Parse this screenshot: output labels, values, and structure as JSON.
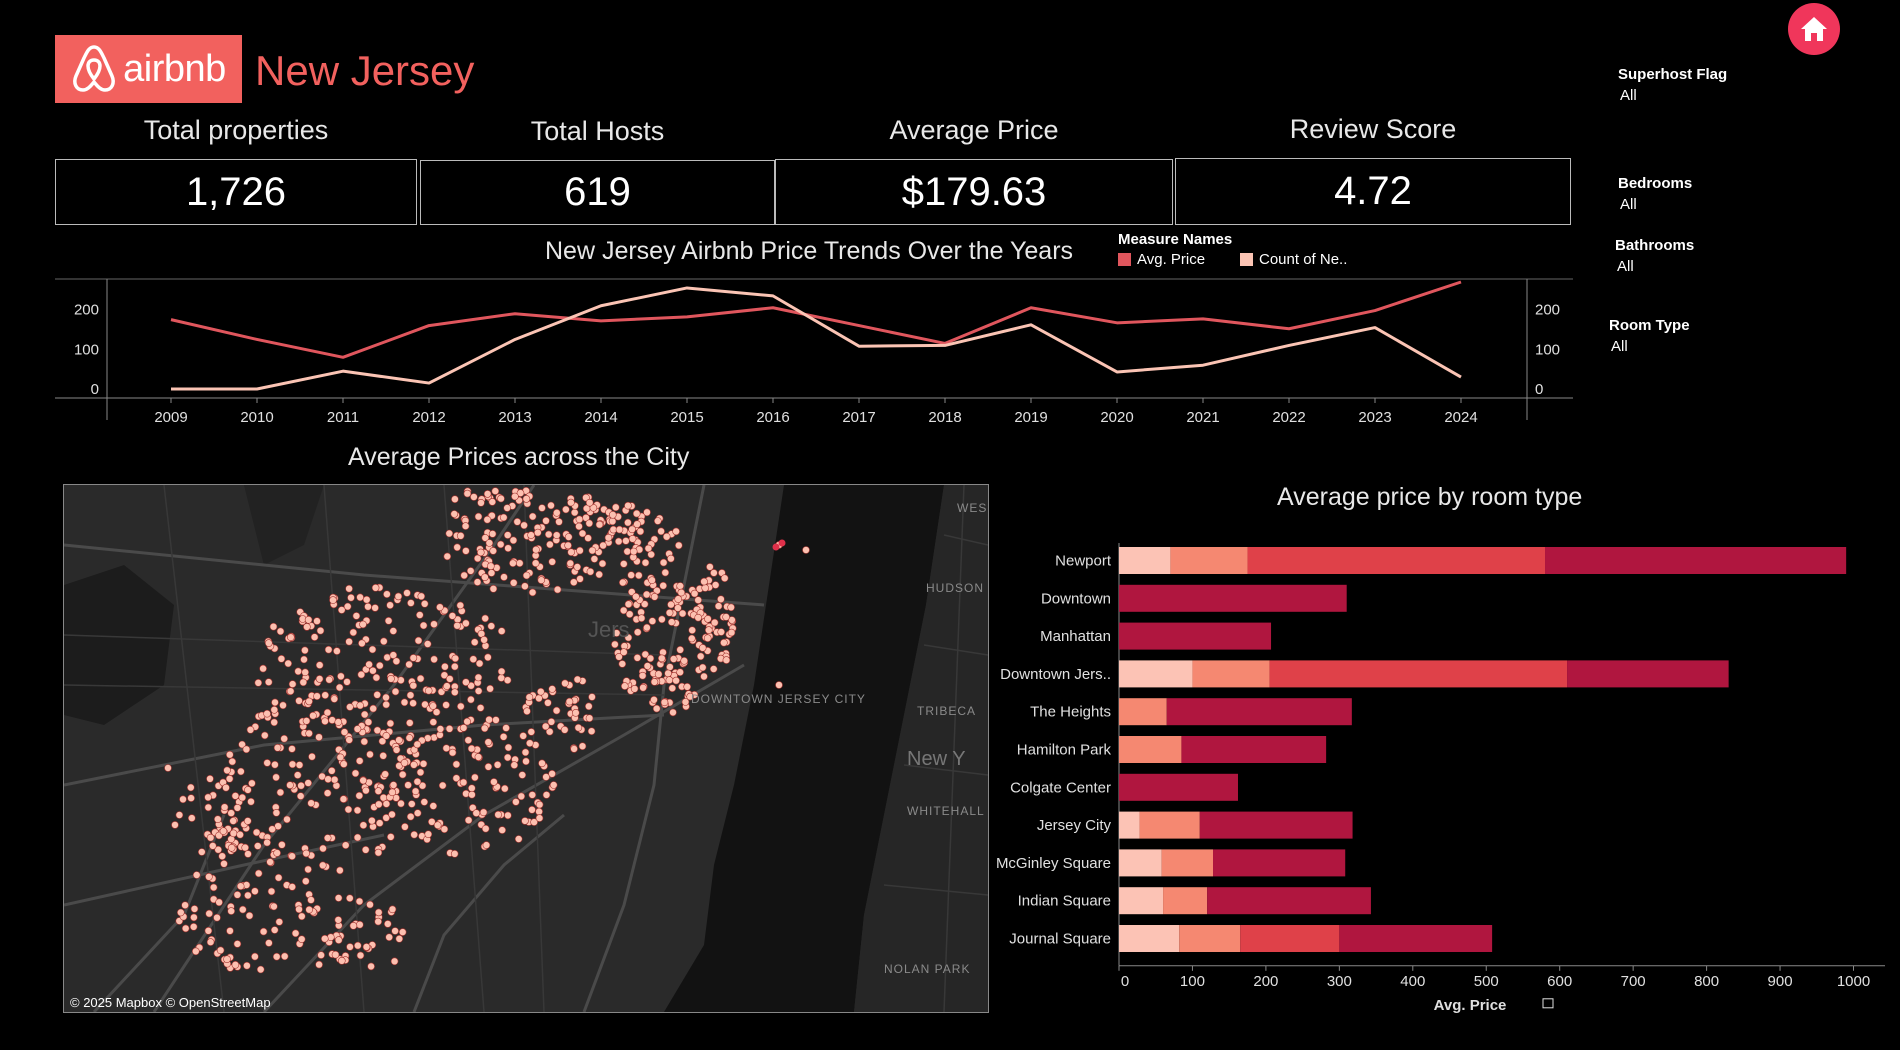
{
  "header": {
    "brand": "airbnb",
    "title": "New Jersey",
    "home_icon": "home-icon"
  },
  "kpis": [
    {
      "label": "Total properties",
      "value": "1,726"
    },
    {
      "label": "Total Hosts",
      "value": "619"
    },
    {
      "label": "Average Price",
      "value": "$179.63"
    },
    {
      "label": "Review Score",
      "value": "4.72"
    }
  ],
  "filters": [
    {
      "label": "Superhost Flag",
      "value": "All"
    },
    {
      "label": "Bedrooms",
      "value": "All"
    },
    {
      "label": "Bathrooms",
      "value": "All"
    },
    {
      "label": "Room Type",
      "value": "All"
    }
  ],
  "colors": {
    "accent": "#f2615e",
    "home": "#f0365b",
    "avg_price": "#e0565d",
    "count": "#fbc4b4",
    "stack": [
      "#fcc3b5",
      "#f58871",
      "#df4149",
      "#b0163f"
    ]
  },
  "chart_data": [
    {
      "type": "line",
      "title": "New Jersey Airbnb Price Trends Over the Years",
      "legend_title": "Measure Names",
      "legend_position": "top-right",
      "x": [
        2009,
        2010,
        2011,
        2012,
        2013,
        2014,
        2015,
        2016,
        2017,
        2018,
        2019,
        2020,
        2021,
        2022,
        2023,
        2024
      ],
      "yticks": [
        "0",
        "100",
        "200"
      ],
      "ylim": [
        0,
        270
      ],
      "series": [
        {
          "name": "Avg. Price",
          "axis": "left",
          "values": [
            175,
            125,
            80,
            160,
            190,
            172,
            182,
            205,
            160,
            115,
            205,
            167,
            177,
            152,
            198,
            270
          ]
        },
        {
          "name": "Count of Ne..",
          "axis": "right",
          "values": [
            0,
            0,
            45,
            15,
            125,
            210,
            255,
            235,
            108,
            110,
            162,
            43,
            60,
            110,
            155,
            30
          ]
        }
      ]
    },
    {
      "type": "bar",
      "stacked": true,
      "orientation": "horizontal",
      "title": "Average price by room type",
      "xlabel": "Avg. Price",
      "xlim": [
        0,
        1000
      ],
      "xticks": [
        "0",
        "100",
        "200",
        "300",
        "400",
        "500",
        "600",
        "700",
        "800",
        "900",
        "1000"
      ],
      "categories": [
        "Newport",
        "Downtown",
        "Manhattan",
        "Downtown Jers..",
        "The Heights",
        "Hamilton Park",
        "Colgate Center",
        "Jersey City",
        "McGinley Square",
        "Indian Square",
        "Journal Square"
      ],
      "series": [
        {
          "values": [
            70,
            0,
            0,
            100,
            0,
            0,
            0,
            28,
            58,
            60,
            82
          ]
        },
        {
          "values": [
            105,
            0,
            0,
            105,
            65,
            85,
            0,
            82,
            70,
            60,
            83
          ]
        },
        {
          "values": [
            405,
            0,
            0,
            405,
            0,
            0,
            0,
            0,
            0,
            0,
            135
          ]
        },
        {
          "values": [
            410,
            310,
            207,
            220,
            252,
            197,
            162,
            208,
            180,
            223,
            208
          ]
        }
      ]
    }
  ],
  "map": {
    "title": "Average Prices across the City",
    "attribution": "© 2025 Mapbox © OpenStreetMap",
    "labels": [
      "WES VILLA",
      "HUDSON SQUARE",
      "DOWNTOWN JERSEY CITY",
      "TRIBECA",
      "New Y",
      "WHITEHALL",
      "NOLAN PARK",
      "Jers"
    ]
  }
}
